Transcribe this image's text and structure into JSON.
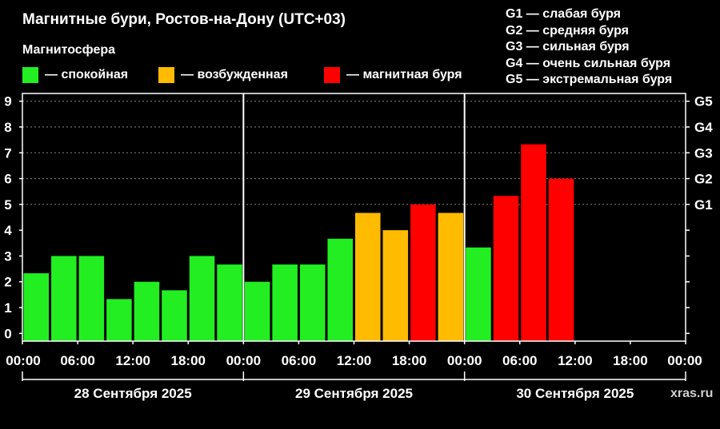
{
  "title": "Магнитные бури, Ростов-на-Дону (UTC+03)",
  "subtitle": "Магнитосфера",
  "legend": [
    {
      "label": "— спокойная",
      "color": "#22ee22"
    },
    {
      "label": "— возбужденная",
      "color": "#ffbb00"
    },
    {
      "label": "— магнитная буря",
      "color": "#ff0000"
    }
  ],
  "g_legend": [
    "G1 — слабая буря",
    "G2 — средняя буря",
    "G3 — сильная буря",
    "G4 — очень сильная буря",
    "G5 — экстремальная буря"
  ],
  "watermark": "xras.ru",
  "chart_data": {
    "type": "bar",
    "ylim": [
      -0.3,
      9.3
    ],
    "y_ticks": [
      "0",
      "1",
      "2",
      "3",
      "4",
      "5",
      "6",
      "7",
      "8",
      "9"
    ],
    "g_levels": [
      {
        "label": "G1",
        "value": 5
      },
      {
        "label": "G2",
        "value": 6
      },
      {
        "label": "G3",
        "value": 7
      },
      {
        "label": "G4",
        "value": 8
      },
      {
        "label": "G5",
        "value": 9
      }
    ],
    "x_ticks": [
      "00:00",
      "06:00",
      "12:00",
      "18:00",
      "00:00",
      "06:00",
      "12:00",
      "18:00",
      "00:00",
      "06:00",
      "12:00",
      "18:00",
      "00:00"
    ],
    "days": [
      "28 Сентября 2025",
      "29 Сентября 2025",
      "30 Сентября 2025"
    ],
    "slots_per_day": 8,
    "values": [
      2.33,
      3.0,
      3.0,
      1.33,
      2.0,
      1.67,
      3.0,
      2.67,
      2.0,
      2.67,
      2.67,
      3.67,
      4.67,
      4.0,
      5.0,
      4.67,
      3.33,
      5.33,
      7.33,
      6.0
    ],
    "colors": [
      "#22ee22",
      "#22ee22",
      "#22ee22",
      "#22ee22",
      "#22ee22",
      "#22ee22",
      "#22ee22",
      "#22ee22",
      "#22ee22",
      "#22ee22",
      "#22ee22",
      "#22ee22",
      "#ffbb00",
      "#ffbb00",
      "#ff0000",
      "#ffbb00",
      "#22ee22",
      "#ff0000",
      "#ff0000",
      "#ff0000"
    ]
  }
}
